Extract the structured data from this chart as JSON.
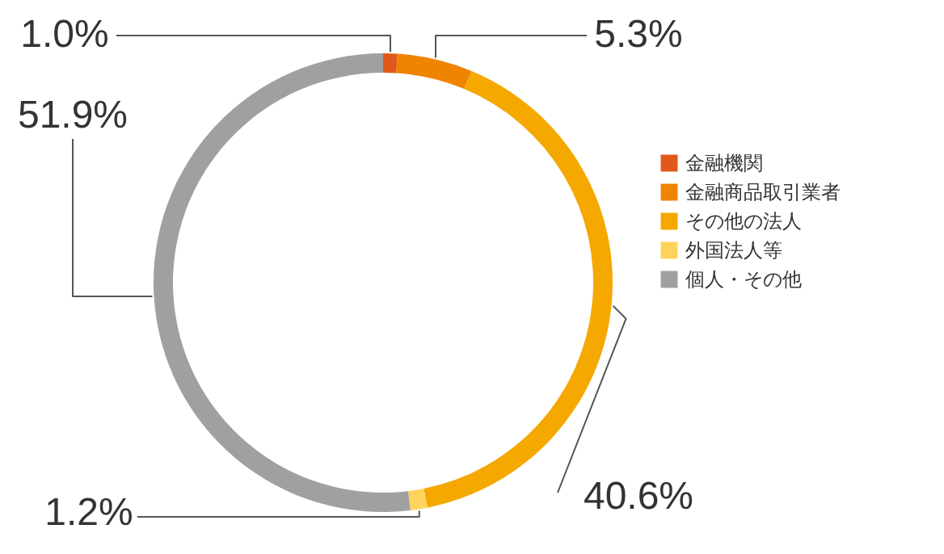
{
  "chart_data": {
    "type": "donut",
    "categories": [
      "金融機関",
      "金融商品取引業者",
      "その他の法人",
      "外国法人等",
      "個人・その他"
    ],
    "values": [
      1.0,
      5.3,
      40.6,
      1.2,
      51.9
    ],
    "colors": [
      "#e0591a",
      "#f08300",
      "#f5a800",
      "#fdd35c",
      "#a0a0a0"
    ],
    "value_labels": [
      "1.0%",
      "5.3%",
      "40.6%",
      "1.2%",
      "51.9%"
    ],
    "legend": "right"
  }
}
